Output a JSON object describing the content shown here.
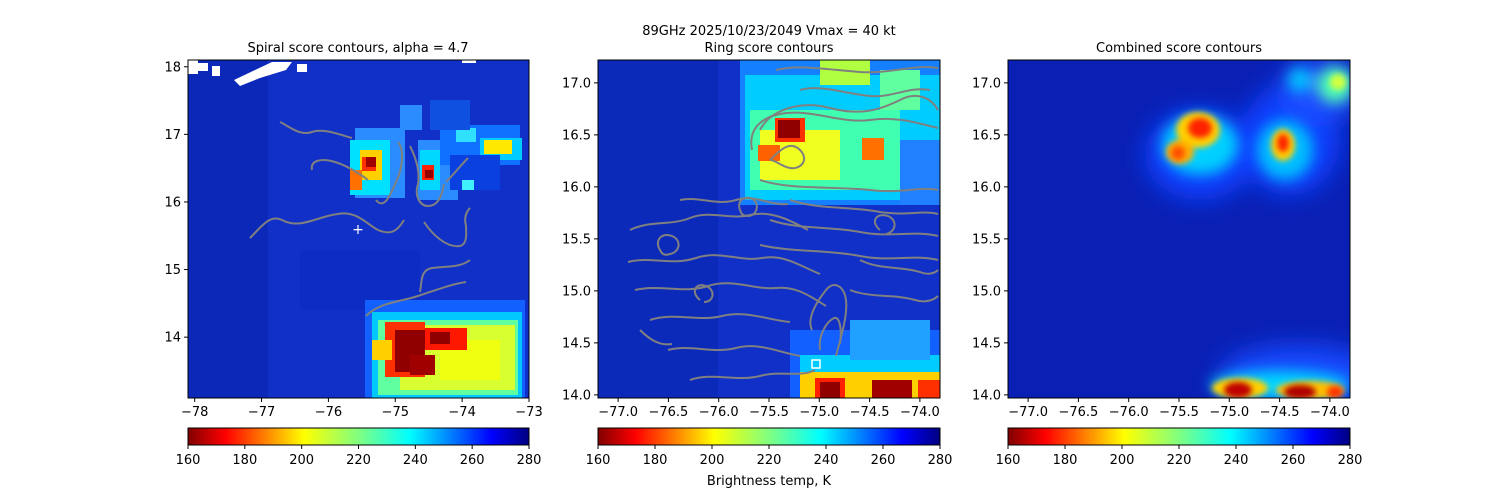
{
  "figure": {
    "suptitle_line1": "89GHz  2025/10/23/2049    Vmax = 40 kt",
    "colorbar_label": "Brightness temp, K"
  },
  "chart_data": [
    {
      "type": "heatmap",
      "title": "Spiral score contours, alpha =  4.7",
      "xlim": [
        -78.1,
        -73.0
      ],
      "ylim": [
        13.1,
        18.1
      ],
      "xticks": [
        -78,
        -77,
        -76,
        -75,
        -74,
        -73
      ],
      "xtick_labels": [
        "−78",
        "−77",
        "−76",
        "−75",
        "−74",
        "−73"
      ],
      "yticks": [
        14,
        15,
        16,
        17,
        18
      ],
      "ytick_labels": [
        "14",
        "15",
        "16",
        "17",
        "18"
      ],
      "colorbar": {
        "min": 160,
        "max": 280,
        "ticks": [
          160,
          180,
          200,
          220,
          240,
          260,
          280
        ],
        "colormap": "jet_r"
      },
      "center_marker": {
        "x": -75.5,
        "y": 15.6,
        "symbol": "+",
        "color": "#ffffff"
      },
      "contour_color": "#808080"
    },
    {
      "type": "heatmap",
      "title": "Ring score contours",
      "xlim": [
        -77.2,
        -73.8
      ],
      "ylim": [
        13.97,
        17.22
      ],
      "xticks": [
        -77.0,
        -76.5,
        -76.0,
        -75.5,
        -75.0,
        -74.5,
        -74.0
      ],
      "xtick_labels": [
        "−77.0",
        "−76.5",
        "−76.0",
        "−75.5",
        "−75.0",
        "−74.5",
        "−74.0"
      ],
      "yticks": [
        14.0,
        14.5,
        15.0,
        15.5,
        16.0,
        16.5,
        17.0
      ],
      "ytick_labels": [
        "14.0",
        "14.5",
        "15.0",
        "15.5",
        "16.0",
        "16.5",
        "17.0"
      ],
      "colorbar": {
        "min": 160,
        "max": 280,
        "ticks": [
          160,
          180,
          200,
          220,
          240,
          260,
          280
        ],
        "colormap": "jet_r"
      },
      "center_marker": {
        "x": -75.0,
        "y": 14.3,
        "symbol": "square",
        "color": "#ffffff"
      },
      "contour_color": "#808080"
    },
    {
      "type": "heatmap",
      "title": "Combined score contours",
      "xlim": [
        -77.2,
        -73.8
      ],
      "ylim": [
        13.97,
        17.22
      ],
      "xticks": [
        -77.0,
        -76.5,
        -76.0,
        -75.5,
        -75.0,
        -74.5,
        -74.0
      ],
      "xtick_labels": [
        "−77.0",
        "−76.5",
        "−76.0",
        "−75.5",
        "−75.0",
        "−74.5",
        "−74.0"
      ],
      "yticks": [
        14.0,
        14.5,
        15.0,
        15.5,
        16.0,
        16.5,
        17.0
      ],
      "ytick_labels": [
        "14.0",
        "14.5",
        "15.0",
        "15.5",
        "16.0",
        "16.5",
        "17.0"
      ],
      "colorbar": {
        "min": 160,
        "max": 280,
        "ticks": [
          160,
          180,
          200,
          220,
          240,
          260,
          280
        ],
        "colormap": "jet_r"
      }
    }
  ]
}
